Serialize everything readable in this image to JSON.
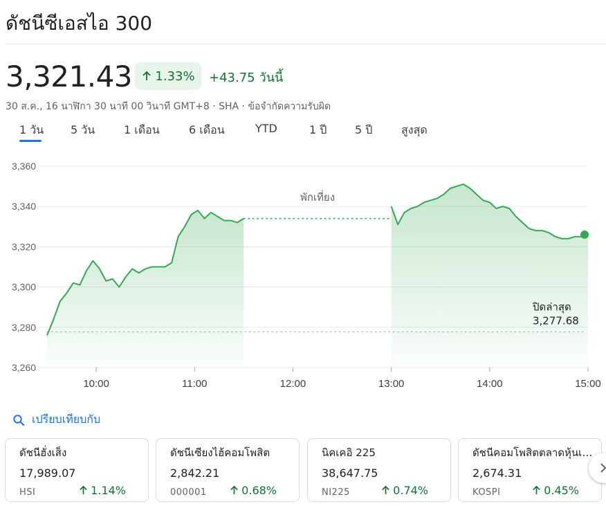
{
  "header": {
    "title": "ดัชนีซีเอสไอ 300"
  },
  "quote": {
    "price": "3,321.43",
    "percent_change": "1.33%",
    "abs_change": "+43.75",
    "today_label": "วันนี้",
    "meta": "30 ส.ค., 16 นาฬิกา 30 นาที 00 วินาที GMT+8 · SHA · ข้อจำกัดความรับผิด"
  },
  "tabs": [
    {
      "label": "1 วัน",
      "active": true
    },
    {
      "label": "5 วัน",
      "active": false
    },
    {
      "label": "1 เดือน",
      "active": false
    },
    {
      "label": "6 เดือน",
      "active": false
    },
    {
      "label": "YTD",
      "active": false
    },
    {
      "label": "1 ปี",
      "active": false
    },
    {
      "label": "5 ปี",
      "active": false
    },
    {
      "label": "สูงสุด",
      "active": false
    }
  ],
  "colors": {
    "up": "#137333",
    "line": "#34a853",
    "accent": "#1a73e8",
    "chip_bg": "#e6f4ea"
  },
  "chart_data": {
    "type": "line",
    "x_ticks": [
      "10:00",
      "11:00",
      "12:00",
      "13:00",
      "14:00",
      "15:00"
    ],
    "y_ticks": [
      "3,360",
      "3,340",
      "3,320",
      "3,300",
      "3,280",
      "3,260"
    ],
    "ylim": [
      3260,
      3360
    ],
    "xlim": [
      "09:30",
      "15:00"
    ],
    "grid": true,
    "annotations": {
      "lunch_break": "พักเที่ยง",
      "prev_close_label": "ปิดล่าสุด",
      "prev_close_value": "3,277.68"
    },
    "prev_close": 3277.68,
    "series": [
      {
        "session": "morning",
        "x": [
          "09:30",
          "09:34",
          "09:38",
          "09:42",
          "09:46",
          "09:50",
          "09:54",
          "09:58",
          "10:02",
          "10:06",
          "10:10",
          "10:14",
          "10:18",
          "10:22",
          "10:26",
          "10:30",
          "10:34",
          "10:38",
          "10:42",
          "10:46",
          "10:50",
          "10:54",
          "10:58",
          "11:02",
          "11:06",
          "11:10",
          "11:14",
          "11:18",
          "11:22",
          "11:26",
          "11:30"
        ],
        "y": [
          3276,
          3284,
          3293,
          3297,
          3302,
          3301,
          3308,
          3313,
          3309,
          3303,
          3304,
          3300,
          3305,
          3309,
          3307,
          3309,
          3310,
          3310,
          3310,
          3312,
          3325,
          3330,
          3336,
          3338,
          3334,
          3337,
          3335,
          3333,
          3333,
          3332,
          3334
        ]
      },
      {
        "session": "afternoon",
        "x": [
          "13:00",
          "13:04",
          "13:08",
          "13:12",
          "13:16",
          "13:20",
          "13:24",
          "13:28",
          "13:32",
          "13:36",
          "13:40",
          "13:44",
          "13:48",
          "13:52",
          "13:56",
          "14:00",
          "14:04",
          "14:08",
          "14:12",
          "14:16",
          "14:20",
          "14:24",
          "14:28",
          "14:32",
          "14:36",
          "14:40",
          "14:44",
          "14:48",
          "14:52",
          "14:56",
          "15:00"
        ],
        "y": [
          3340,
          3331,
          3337,
          3339,
          3340,
          3342,
          3343,
          3344,
          3346,
          3349,
          3350,
          3351,
          3349,
          3346,
          3343,
          3342,
          3339,
          3340,
          3339,
          3335,
          3332,
          3329,
          3328,
          3328,
          3327,
          3325,
          3324,
          3324,
          3325,
          3325,
          3326
        ]
      }
    ]
  },
  "compare": {
    "label": "เปรียบเทียบกับ"
  },
  "cards": [
    {
      "name": "ดัชนีฮั่งเส็ง",
      "value": "17,989.07",
      "symbol": "HSI",
      "change": "1.14%"
    },
    {
      "name": "ดัชนีเซียงไฮ้คอมโพสิต",
      "value": "2,842.21",
      "symbol": "000001",
      "change": "0.68%"
    },
    {
      "name": "นิคเคอิ 225",
      "value": "38,647.75",
      "symbol": "NI225",
      "change": "0.74%"
    },
    {
      "name": "ดัชนีคอมโพสิตตลาดหุ้นเกาหลี",
      "value": "2,674.31",
      "symbol": "KOSPI",
      "change": "0.45%"
    }
  ]
}
